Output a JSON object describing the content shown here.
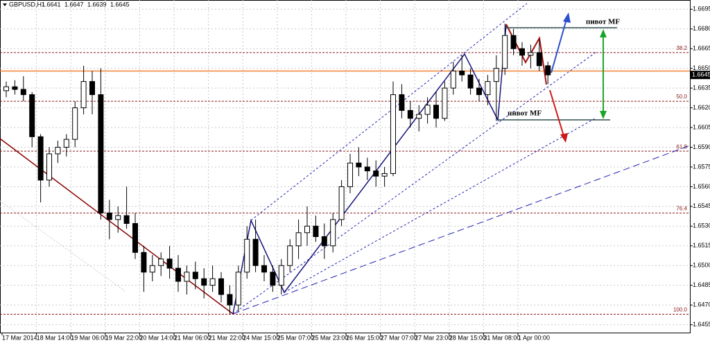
{
  "chart_data": {
    "type": "candlestick",
    "symbol": "GBPUSD,H1",
    "header_ohlc": [
      1.6641,
      1.6647,
      1.6639,
      1.6645
    ],
    "ylim": [
      1.6449,
      1.6702
    ],
    "yticks": [
      1.6695,
      {
        "value": 1.668,
        "label": "1.6680"
      },
      1.6665,
      {
        "value": 1.665,
        "label": "1.6650"
      },
      1.6635,
      {
        "value": 1.662,
        "label": "1.6620"
      },
      1.6605,
      {
        "value": 1.659,
        "label": "1.6590"
      },
      1.6575,
      {
        "value": 1.656,
        "label": "1.6560"
      },
      1.6545,
      {
        "value": 1.653,
        "label": "1.6530"
      },
      1.6515,
      {
        "value": 1.65,
        "label": "1.6500"
      },
      1.6485,
      {
        "value": 1.647,
        "label": "1.6470"
      },
      1.6455
    ],
    "grid": true,
    "categories": [
      "17 Mar 2014",
      null,
      null,
      null,
      "18 Mar 14:00",
      null,
      null,
      null,
      "19 Mar 06:00",
      null,
      null,
      null,
      "19 Mar 22:00",
      null,
      null,
      null,
      "20 Mar 14:00",
      null,
      null,
      null,
      "21 Mar 06:00",
      null,
      null,
      null,
      "21 Mar 22:00",
      null,
      null,
      null,
      "24 Mar 15:00",
      null,
      null,
      null,
      "25 Mar 07:00",
      null,
      null,
      null,
      "25 Mar 23:00",
      null,
      null,
      null,
      "26 Mar 15:00",
      null,
      null,
      null,
      "27 Mar 07:00",
      null,
      null,
      null,
      "27 Mar 23:00",
      null,
      null,
      null,
      "28 Mar 15:00",
      null,
      null,
      null,
      "31 Mar 08:00",
      null,
      null,
      null,
      "1 Apr 00:00",
      null,
      null,
      null
    ],
    "open": [
      1.6633,
      1.6636,
      1.6634,
      1.663,
      1.6598,
      1.6565,
      1.6585,
      1.659,
      1.6596,
      1.662,
      1.664,
      1.663,
      1.654,
      1.6535,
      1.6538,
      1.6532,
      1.651,
      1.6495,
      1.65,
      1.6505,
      1.6498,
      1.6488,
      1.6495,
      1.649,
      1.6485,
      1.649,
      1.6478,
      1.647,
      1.6495,
      1.652,
      1.65,
      1.6495,
      1.6485,
      1.65,
      1.6515,
      1.6525,
      1.653,
      1.6522,
      1.6515,
      1.6535,
      1.656,
      1.6578,
      1.6575,
      1.6572,
      1.6568,
      1.657,
      1.663,
      1.6618,
      1.6612,
      1.6615,
      1.6622,
      1.6612,
      1.6635,
      1.6648,
      1.6645,
      1.6635,
      1.663,
      1.664,
      1.665,
      1.6675,
      1.6665,
      1.666,
      1.6662,
      1.6652
    ],
    "high": [
      1.664,
      1.6641,
      1.6644,
      1.6632,
      1.66,
      1.659,
      1.6595,
      1.66,
      1.6625,
      1.6652,
      1.6648,
      1.665,
      1.655,
      1.6545,
      1.656,
      1.654,
      1.6515,
      1.6508,
      1.651,
      1.6515,
      1.6508,
      1.65,
      1.6503,
      1.6498,
      1.65,
      1.6495,
      1.6485,
      1.65,
      1.653,
      1.6535,
      1.6508,
      1.65,
      1.6505,
      1.652,
      1.6535,
      1.6545,
      1.6538,
      1.6532,
      1.654,
      1.6565,
      1.6585,
      1.659,
      1.6582,
      1.658,
      1.6575,
      1.664,
      1.6638,
      1.6625,
      1.6622,
      1.6628,
      1.6632,
      1.664,
      1.6655,
      1.666,
      1.665,
      1.6642,
      1.6645,
      1.666,
      1.6684,
      1.668,
      1.667,
      1.6668,
      1.6672,
      1.6655
    ],
    "low": [
      1.6628,
      1.663,
      1.6625,
      1.659,
      1.6548,
      1.656,
      1.6578,
      1.6583,
      1.659,
      1.6615,
      1.6615,
      1.6535,
      1.652,
      1.6525,
      1.6528,
      1.6505,
      1.648,
      1.6488,
      1.6492,
      1.649,
      1.648,
      1.6478,
      1.6482,
      1.6475,
      1.648,
      1.6472,
      1.6463,
      1.6465,
      1.649,
      1.6495,
      1.6488,
      1.648,
      1.6478,
      1.6495,
      1.6505,
      1.6515,
      1.6518,
      1.6505,
      1.651,
      1.653,
      1.6555,
      1.6568,
      1.6565,
      1.656,
      1.656,
      1.6568,
      1.6612,
      1.6605,
      1.6602,
      1.6608,
      1.6605,
      1.661,
      1.663,
      1.664,
      1.663,
      1.6625,
      1.6622,
      1.661,
      1.6645,
      1.666,
      1.6652,
      1.665,
      1.6648,
      1.6638
    ],
    "close": [
      1.6636,
      1.6634,
      1.663,
      1.6598,
      1.6565,
      1.6585,
      1.659,
      1.6596,
      1.662,
      1.664,
      1.663,
      1.654,
      1.6535,
      1.6538,
      1.6532,
      1.651,
      1.6495,
      1.65,
      1.6505,
      1.6498,
      1.6488,
      1.6495,
      1.649,
      1.6485,
      1.649,
      1.6478,
      1.647,
      1.6495,
      1.652,
      1.65,
      1.6495,
      1.6485,
      1.65,
      1.6515,
      1.6525,
      1.653,
      1.6522,
      1.6515,
      1.6535,
      1.656,
      1.6578,
      1.6575,
      1.6572,
      1.6568,
      1.657,
      1.663,
      1.6618,
      1.6612,
      1.6615,
      1.6622,
      1.6612,
      1.6635,
      1.6648,
      1.6645,
      1.6635,
      1.663,
      1.664,
      1.665,
      1.6675,
      1.6665,
      1.666,
      1.6662,
      1.6652,
      1.6645
    ],
    "fib_levels": [
      {
        "label": "38.2",
        "price": 1.6662
      },
      {
        "label": "50.0",
        "price": 1.6625
      },
      {
        "label": "61.8",
        "price": 1.6587
      },
      {
        "label": "76.4",
        "price": 1.654
      },
      {
        "label": "100.0",
        "price": 1.6463
      }
    ],
    "bid_line": 1.6648,
    "current_price": 1.6645,
    "annotations": [
      "пивот MF",
      "пивот MF"
    ]
  }
}
